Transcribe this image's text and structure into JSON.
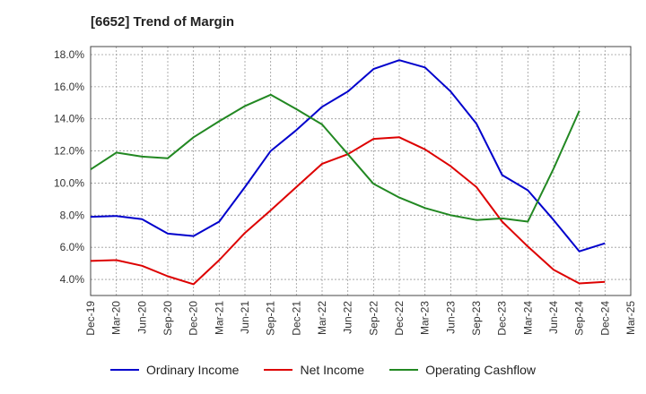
{
  "title": "[6652]  Trend of Margin",
  "chart_data": {
    "type": "line",
    "title": "[6652]  Trend of Margin",
    "xlabel": "",
    "ylabel": "",
    "x": [
      "Dec-19",
      "Mar-20",
      "Jun-20",
      "Sep-20",
      "Dec-20",
      "Mar-21",
      "Jun-21",
      "Sep-21",
      "Dec-21",
      "Mar-22",
      "Jun-22",
      "Sep-22",
      "Dec-22",
      "Mar-23",
      "Jun-23",
      "Sep-23",
      "Dec-23",
      "Mar-24",
      "Jun-24",
      "Sep-24",
      "Dec-24",
      "Mar-25"
    ],
    "y_ticks": [
      "4.0%",
      "6.0%",
      "8.0%",
      "10.0%",
      "12.0%",
      "14.0%",
      "16.0%",
      "18.0%"
    ],
    "ylim": [
      3.0,
      18.5
    ],
    "grid": true,
    "legend_position": "bottom",
    "series": [
      {
        "name": "Ordinary Income",
        "color": "#0000cc",
        "values": [
          7.9,
          7.95,
          7.75,
          6.85,
          6.7,
          7.6,
          9.75,
          12.0,
          13.3,
          14.75,
          15.7,
          17.1,
          17.65,
          17.2,
          15.7,
          13.7,
          10.5,
          9.55,
          7.7,
          5.75,
          6.25,
          null
        ]
      },
      {
        "name": "Net Income",
        "color": "#dd0000",
        "values": [
          5.15,
          5.2,
          4.85,
          4.2,
          3.7,
          5.2,
          6.9,
          8.3,
          9.75,
          11.2,
          11.8,
          12.75,
          12.85,
          12.1,
          11.05,
          9.75,
          7.6,
          6.05,
          4.6,
          3.75,
          3.85,
          null
        ]
      },
      {
        "name": "Operating Cashflow",
        "color": "#228822",
        "values": [
          10.85,
          11.9,
          11.65,
          11.55,
          12.85,
          13.85,
          14.8,
          15.5,
          14.6,
          13.65,
          11.8,
          9.95,
          9.1,
          8.45,
          8.0,
          7.7,
          7.8,
          7.6,
          10.9,
          14.5,
          null,
          null
        ]
      }
    ]
  }
}
